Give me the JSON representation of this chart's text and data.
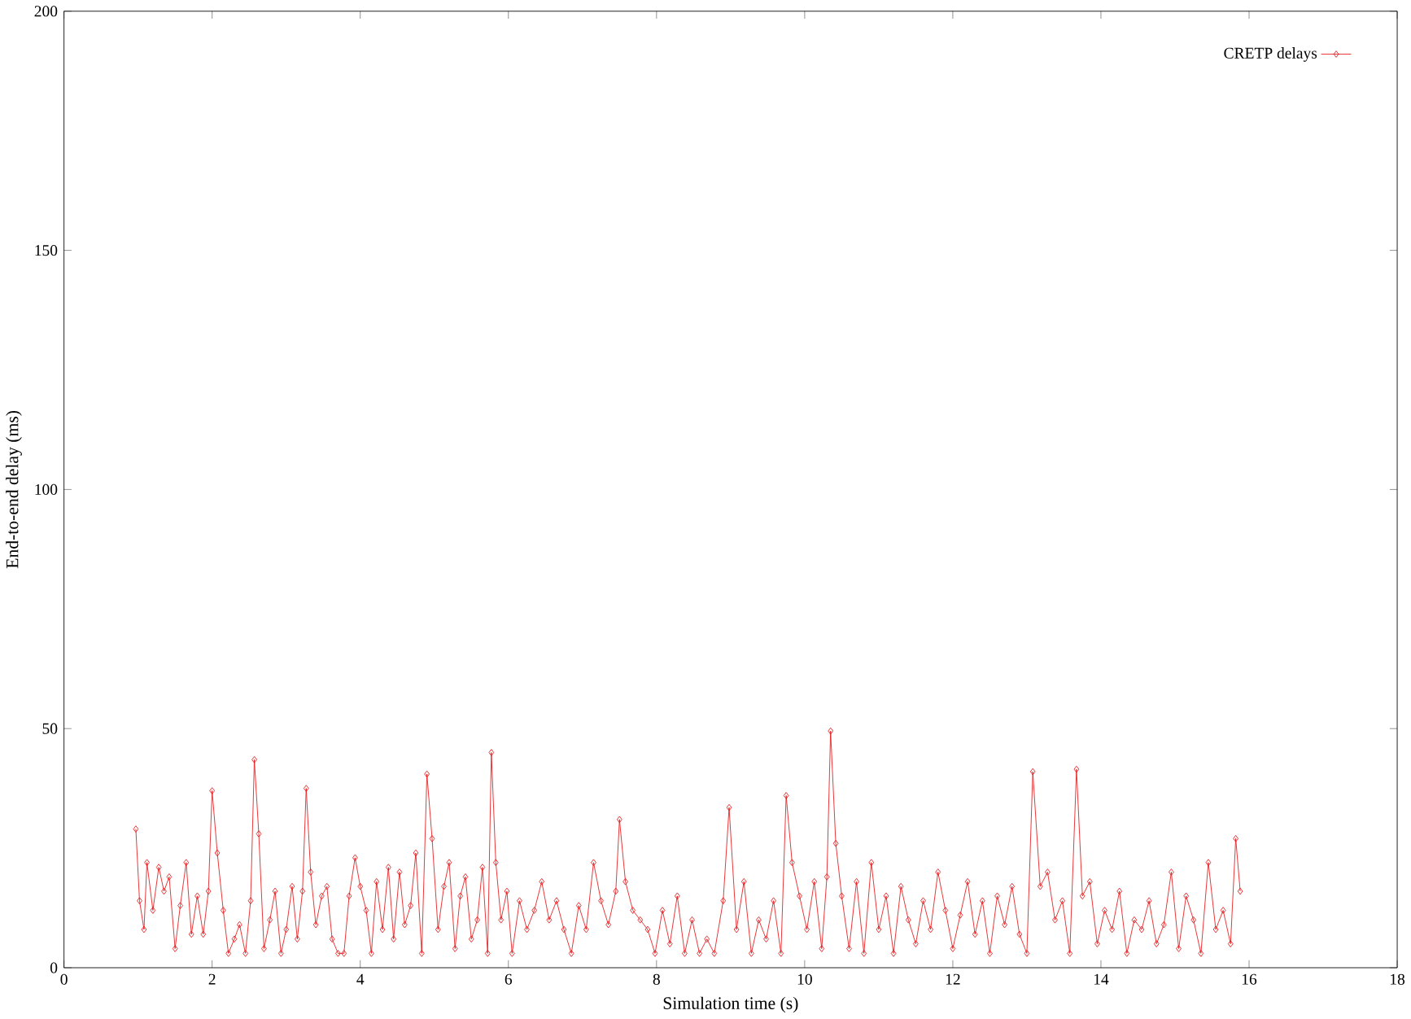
{
  "chart_data": {
    "type": "line",
    "xlabel": "Simulation time (s)",
    "ylabel": "End-to-end delay (ms)",
    "xlim": [
      0,
      18
    ],
    "ylim": [
      0,
      200
    ],
    "xticks": [
      0,
      2,
      4,
      6,
      8,
      10,
      12,
      14,
      16,
      18
    ],
    "yticks": [
      0,
      50,
      100,
      150,
      200
    ],
    "legend": "top right",
    "marker": "diamond",
    "grid": false,
    "series": [
      {
        "name": "CRETP delays",
        "color": "#e41a1c",
        "x": [
          0.97,
          1.02,
          1.08,
          1.12,
          1.2,
          1.28,
          1.35,
          1.42,
          1.5,
          1.57,
          1.65,
          1.72,
          1.8,
          1.88,
          1.95,
          2.0,
          2.07,
          2.15,
          2.22,
          2.3,
          2.37,
          2.45,
          2.52,
          2.57,
          2.63,
          2.7,
          2.78,
          2.85,
          2.93,
          3.0,
          3.08,
          3.15,
          3.22,
          3.27,
          3.33,
          3.4,
          3.48,
          3.55,
          3.62,
          3.7,
          3.78,
          3.85,
          3.93,
          4.0,
          4.08,
          4.15,
          4.22,
          4.3,
          4.38,
          4.45,
          4.53,
          4.6,
          4.68,
          4.75,
          4.83,
          4.9,
          4.97,
          5.05,
          5.13,
          5.2,
          5.28,
          5.35,
          5.42,
          5.5,
          5.58,
          5.65,
          5.72,
          5.77,
          5.83,
          5.9,
          5.98,
          6.05,
          6.15,
          6.25,
          6.35,
          6.45,
          6.55,
          6.65,
          6.75,
          6.85,
          6.95,
          7.05,
          7.15,
          7.25,
          7.35,
          7.45,
          7.5,
          7.58,
          7.68,
          7.78,
          7.88,
          7.98,
          8.08,
          8.18,
          8.28,
          8.38,
          8.48,
          8.58,
          8.68,
          8.78,
          8.9,
          8.98,
          9.08,
          9.18,
          9.28,
          9.38,
          9.48,
          9.58,
          9.68,
          9.75,
          9.83,
          9.93,
          10.03,
          10.13,
          10.23,
          10.3,
          10.35,
          10.42,
          10.5,
          10.6,
          10.7,
          10.8,
          10.9,
          11.0,
          11.1,
          11.2,
          11.3,
          11.4,
          11.5,
          11.6,
          11.7,
          11.8,
          11.9,
          12.0,
          12.1,
          12.2,
          12.3,
          12.4,
          12.5,
          12.6,
          12.7,
          12.8,
          12.9,
          13.0,
          13.08,
          13.18,
          13.28,
          13.38,
          13.48,
          13.58,
          13.67,
          13.75,
          13.85,
          13.95,
          14.05,
          14.15,
          14.25,
          14.35,
          14.45,
          14.55,
          14.65,
          14.75,
          14.85,
          14.95,
          15.05,
          15.15,
          15.25,
          15.35,
          15.45,
          15.55,
          15.65,
          15.75,
          15.82,
          15.88
        ],
        "values": [
          29,
          14,
          8,
          22,
          12,
          21,
          16,
          19,
          4,
          13,
          22,
          7,
          15,
          7,
          16,
          37,
          24,
          12,
          3,
          6,
          9,
          3,
          14,
          43.5,
          28,
          4,
          10,
          16,
          3,
          8,
          17,
          6,
          16,
          37.5,
          20,
          9,
          15,
          17,
          6,
          3,
          3,
          15,
          23,
          17,
          12,
          3,
          18,
          8,
          21,
          6,
          20,
          9,
          13,
          24,
          3,
          40.5,
          27,
          8,
          17,
          22,
          4,
          15,
          19,
          6,
          10,
          21,
          3,
          45,
          22,
          10,
          16,
          3,
          14,
          8,
          12,
          18,
          10,
          14,
          8,
          3,
          13,
          8,
          22,
          14,
          9,
          16,
          31,
          18,
          12,
          10,
          8,
          3,
          12,
          5,
          15,
          3,
          10,
          3,
          6,
          3,
          14,
          33.5,
          8,
          18,
          3,
          10,
          6,
          14,
          3,
          36,
          22,
          15,
          8,
          18,
          4,
          19,
          49.5,
          26,
          15,
          4,
          18,
          3,
          22,
          8,
          15,
          3,
          17,
          10,
          5,
          14,
          8,
          20,
          12,
          4,
          11,
          18,
          7,
          14,
          3,
          15,
          9,
          17,
          7,
          3,
          41,
          17,
          20,
          10,
          14,
          3,
          41.5,
          15,
          18,
          5,
          12,
          8,
          16,
          3,
          10,
          8,
          14,
          5,
          9,
          20,
          4,
          15,
          10,
          3,
          22,
          8,
          12,
          5,
          27,
          16
        ]
      }
    ]
  }
}
